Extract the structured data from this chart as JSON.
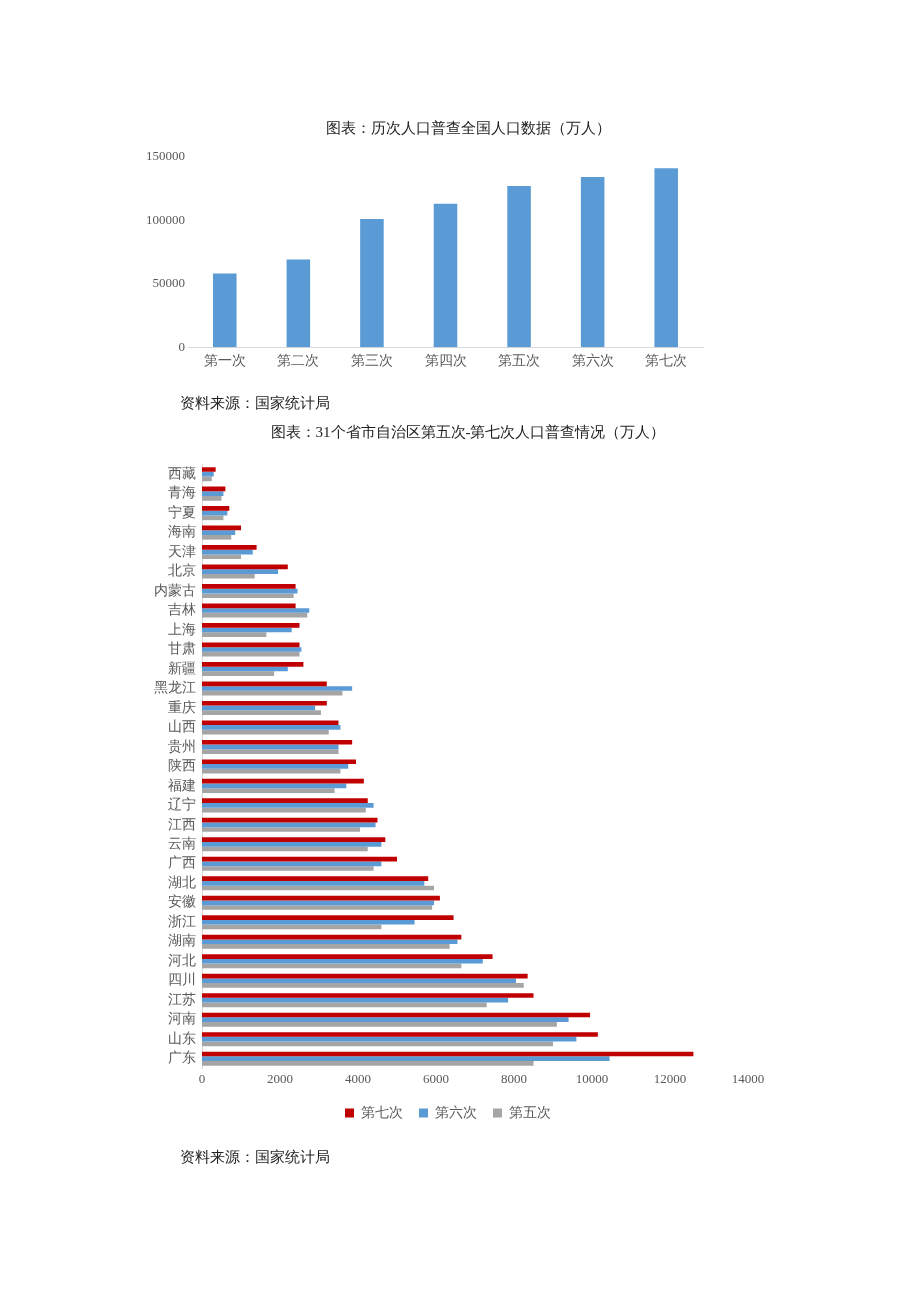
{
  "chart_data": [
    {
      "type": "bar",
      "title": "图表：历次人口普查全国人口数据（万人）",
      "categories": [
        "第一次",
        "第二次",
        "第三次",
        "第四次",
        "第五次",
        "第六次",
        "第七次"
      ],
      "values": [
        58000,
        69000,
        101000,
        113000,
        127000,
        134000,
        141000
      ],
      "color": "#5b9bd5",
      "ylim": [
        0,
        150000
      ],
      "yticks": [
        0,
        50000,
        100000,
        150000
      ],
      "annotations": [
        "资料来源：国家统计局"
      ]
    },
    {
      "type": "bar",
      "orientation": "horizontal",
      "title": "图表：31个省市自治区第五次-第七次人口普查情况（万人）",
      "categories": [
        "西藏",
        "青海",
        "宁夏",
        "海南",
        "天津",
        "北京",
        "内蒙古",
        "吉林",
        "上海",
        "甘肃",
        "新疆",
        "黑龙江",
        "重庆",
        "山西",
        "贵州",
        "陕西",
        "福建",
        "辽宁",
        "江西",
        "云南",
        "广西",
        "湖北",
        "安徽",
        "浙江",
        "湖南",
        "河北",
        "四川",
        "江苏",
        "河南",
        "山东",
        "广东"
      ],
      "series": [
        {
          "name": "第七次",
          "color": "#c00000",
          "values": [
            350,
            600,
            700,
            1000,
            1400,
            2200,
            2400,
            2400,
            2500,
            2500,
            2600,
            3200,
            3200,
            3500,
            3850,
            3950,
            4150,
            4250,
            4500,
            4700,
            5000,
            5800,
            6100,
            6450,
            6650,
            7450,
            8350,
            8500,
            9950,
            10150,
            12600
          ]
        },
        {
          "name": "第六次",
          "color": "#5b9bd5",
          "values": [
            300,
            550,
            650,
            850,
            1300,
            1950,
            2450,
            2750,
            2300,
            2550,
            2200,
            3850,
            2900,
            3550,
            3500,
            3750,
            3700,
            4400,
            4450,
            4600,
            4600,
            5700,
            5950,
            5450,
            6550,
            7200,
            8050,
            7850,
            9400,
            9600,
            10450
          ]
        },
        {
          "name": "第五次",
          "color": "#a5a5a5",
          "values": [
            250,
            500,
            550,
            750,
            1000,
            1350,
            2350,
            2700,
            1650,
            2500,
            1850,
            3600,
            3050,
            3250,
            3500,
            3550,
            3400,
            4200,
            4050,
            4250,
            4400,
            5950,
            5900,
            4600,
            6350,
            6650,
            8250,
            7300,
            9100,
            9000,
            8500
          ]
        }
      ],
      "xlim": [
        0,
        14000
      ],
      "xticks": [
        0,
        2000,
        4000,
        6000,
        8000,
        10000,
        12000,
        14000
      ],
      "legend": "bottom",
      "annotations": [
        "资料来源：国家统计局"
      ]
    }
  ]
}
